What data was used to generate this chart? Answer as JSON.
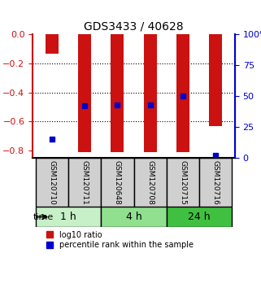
{
  "title": "GDS3433 / 40628",
  "samples": [
    "GSM120710",
    "GSM120711",
    "GSM120648",
    "GSM120708",
    "GSM120715",
    "GSM120716"
  ],
  "log10_ratios": [
    -0.13,
    -0.81,
    -0.81,
    -0.81,
    -0.81,
    -0.63
  ],
  "percentile_ranks": [
    15,
    42,
    43,
    43,
    50,
    2
  ],
  "time_groups": [
    {
      "label": "1 h",
      "samples": [
        0,
        1
      ],
      "color": "#c8f0c8"
    },
    {
      "label": "4 h",
      "samples": [
        2,
        3
      ],
      "color": "#90e090"
    },
    {
      "label": "24 h",
      "samples": [
        4,
        5
      ],
      "color": "#40c040"
    }
  ],
  "ylim_left": [
    -0.85,
    0.0
  ],
  "ylim_right": [
    0,
    100
  ],
  "yticks_left": [
    0,
    -0.2,
    -0.4,
    -0.6,
    -0.8
  ],
  "yticks_right": [
    0,
    25,
    50,
    75,
    100
  ],
  "bar_color": "#cc1111",
  "dot_color": "#0000cc",
  "bg_color": "#ffffff",
  "plot_bg": "#ffffff",
  "label_log10": "log10 ratio",
  "label_percentile": "percentile rank within the sample",
  "xlabel": "time",
  "bar_width": 0.4
}
